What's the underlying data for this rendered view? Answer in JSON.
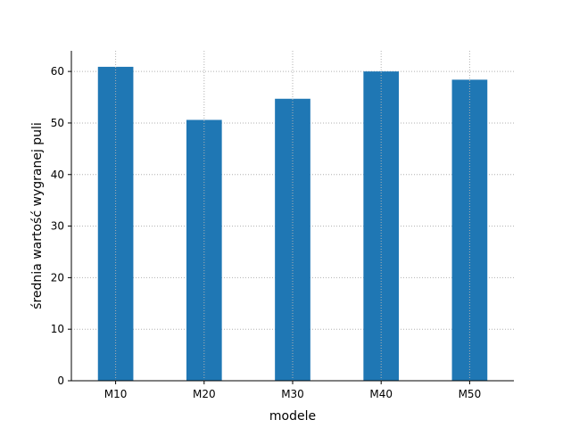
{
  "chart_data": {
    "type": "bar",
    "title": "",
    "xlabel": "modele",
    "ylabel": "średnia wartość wygranej puli",
    "categories": [
      "M10",
      "M20",
      "M30",
      "M40",
      "M50"
    ],
    "values": [
      60.9,
      50.6,
      54.7,
      60.0,
      58.4
    ],
    "ylim": [
      0,
      64
    ],
    "yticks": [
      0,
      10,
      20,
      30,
      40,
      50,
      60
    ],
    "grid": true,
    "legend": "none",
    "bar_color": "#1f77b4",
    "grid_color": "#b0b0b0"
  }
}
